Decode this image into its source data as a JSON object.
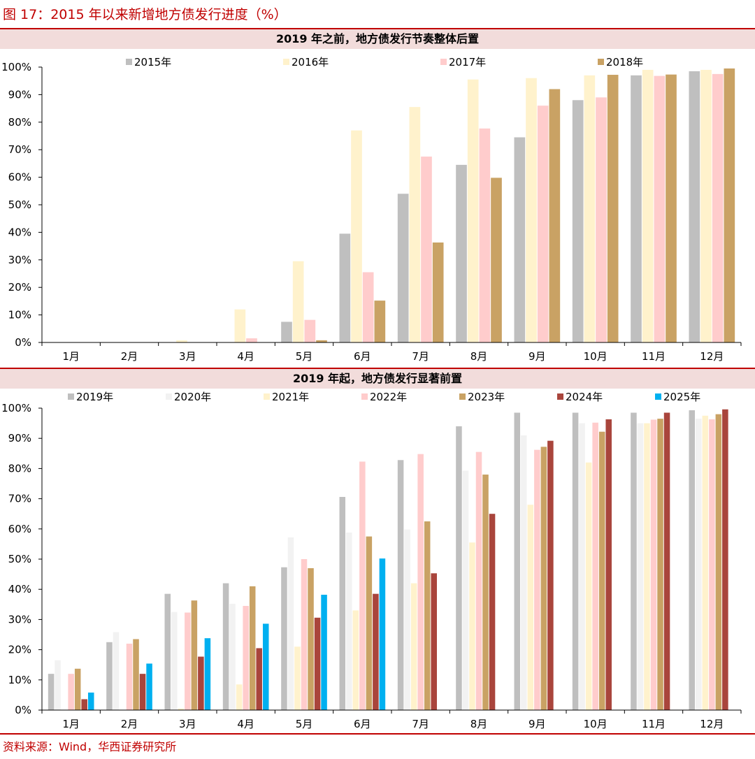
{
  "figure_title": "图 17：2015 年以来新增地方债发行进度（%）",
  "source": "资料来源：Wind，华西证券研究所",
  "colors": {
    "accent": "#c00000",
    "band": "#f2dcdb"
  },
  "chart_data": [
    {
      "type": "bar",
      "title": "2019 年之前，地方债发行节奏整体后置",
      "categories": [
        "1月",
        "2月",
        "3月",
        "4月",
        "5月",
        "6月",
        "7月",
        "8月",
        "9月",
        "10月",
        "11月",
        "12月"
      ],
      "yticks": [
        "0%",
        "10%",
        "20%",
        "30%",
        "40%",
        "50%",
        "60%",
        "70%",
        "80%",
        "90%",
        "100%"
      ],
      "ylim": [
        0,
        100
      ],
      "series": [
        {
          "name": "2015年",
          "color": "#bfbfbf",
          "values": [
            0,
            0,
            0,
            0,
            7.5,
            39.5,
            54,
            64.5,
            74.5,
            88,
            97,
            98.5
          ]
        },
        {
          "name": "2016年",
          "color": "#fff2cc",
          "values": [
            0,
            0,
            0.8,
            12,
            29.5,
            77,
            85.5,
            95.5,
            96,
            97,
            99,
            99
          ]
        },
        {
          "name": "2017年",
          "color": "#ffcccc",
          "values": [
            0,
            0,
            0,
            1.5,
            8.2,
            25.5,
            67.5,
            77.7,
            86,
            89,
            96.8,
            97.5
          ]
        },
        {
          "name": "2018年",
          "color": "#c9a264",
          "values": [
            0,
            0,
            0,
            0,
            0.8,
            15.2,
            36.3,
            59.8,
            92,
            97.2,
            97.3,
            99.5
          ]
        }
      ]
    },
    {
      "type": "bar",
      "title": "2019 年起，地方债发行显著前置",
      "categories": [
        "1月",
        "2月",
        "3月",
        "4月",
        "5月",
        "6月",
        "7月",
        "8月",
        "9月",
        "10月",
        "11月",
        "12月"
      ],
      "yticks": [
        "0%",
        "10%",
        "20%",
        "30%",
        "40%",
        "50%",
        "60%",
        "70%",
        "80%",
        "90%",
        "100%"
      ],
      "ylim": [
        0,
        100
      ],
      "series": [
        {
          "name": "2019年",
          "color": "#bfbfbf",
          "values": [
            12,
            22.5,
            38.5,
            42,
            47.3,
            70.6,
            82.8,
            94,
            98.5,
            98.5,
            98.5,
            99.3
          ]
        },
        {
          "name": "2020年",
          "color": "#f2f2f2",
          "values": [
            16.5,
            25.8,
            32.5,
            35.2,
            57.2,
            58.8,
            59.8,
            79.3,
            91,
            95,
            95,
            96.5
          ]
        },
        {
          "name": "2021年",
          "color": "#fff2cc",
          "values": [
            0,
            0,
            0.5,
            8.5,
            21,
            33,
            42,
            55.5,
            68,
            82,
            95,
            97.5
          ]
        },
        {
          "name": "2022年",
          "color": "#ffcccc",
          "values": [
            12,
            22,
            32.3,
            34.5,
            50,
            82.3,
            84.8,
            85.5,
            86.2,
            95.2,
            96.2,
            96.3
          ]
        },
        {
          "name": "2023年",
          "color": "#c9a264",
          "values": [
            13.7,
            23.5,
            36.3,
            41,
            47,
            57.5,
            62.5,
            78,
            87.2,
            92.2,
            96.5,
            98
          ]
        },
        {
          "name": "2024年",
          "color": "#a9453c",
          "values": [
            3.6,
            12,
            17.7,
            20.5,
            30.6,
            38.5,
            45.3,
            65,
            89.2,
            96.3,
            98.5,
            99.6
          ]
        },
        {
          "name": "2025年",
          "color": "#00b0f0",
          "values": [
            5.8,
            15.4,
            23.8,
            28.6,
            38.2,
            50.2,
            null,
            null,
            null,
            null,
            null,
            null
          ]
        }
      ]
    }
  ]
}
